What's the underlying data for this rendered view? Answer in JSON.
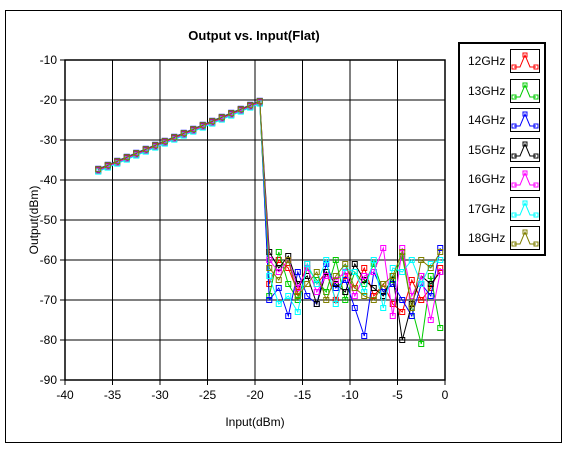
{
  "chart_data": {
    "type": "line",
    "title": "Output vs. Input(Flat)",
    "xlabel": "Input(dBm)",
    "ylabel": "Output(dBm)",
    "xlim": [
      -40,
      0
    ],
    "ylim": [
      -90,
      -10
    ],
    "x_ticks": [
      "-40",
      "-35",
      "-30",
      "-25",
      "-20",
      "-15",
      "-10",
      "-5",
      "0"
    ],
    "y_ticks": [
      "-10",
      "-20",
      "-30",
      "-40",
      "-50",
      "-60",
      "-70",
      "-80",
      "-90"
    ],
    "grid": true,
    "legend_position": "right",
    "x": [
      -36.5,
      -35.5,
      -34.5,
      -33.5,
      -32.5,
      -31.5,
      -30.5,
      -29.5,
      -28.5,
      -27.5,
      -26.5,
      -25.5,
      -24.5,
      -23.5,
      -22.5,
      -21.5,
      -20.5,
      -19.5,
      -18.5,
      -17.5,
      -16.5,
      -15.5,
      -14.5,
      -13.5,
      -12.5,
      -11.5,
      -10.5,
      -9.5,
      -8.5,
      -7.5,
      -6.5,
      -5.5,
      -4.5,
      -3.5,
      -2.5,
      -1.5,
      -0.5
    ],
    "series": [
      {
        "name": "12GHz",
        "color": "#ff0000",
        "values": [
          -37.5,
          -36.5,
          -35.5,
          -34.5,
          -33.5,
          -32.5,
          -31.5,
          -30.5,
          -29.5,
          -28.5,
          -27.5,
          -26.5,
          -25.5,
          -24.5,
          -23.5,
          -22.5,
          -21.5,
          -20.5,
          -66,
          -60,
          -62,
          -68,
          -61,
          -66,
          -63,
          -70,
          -64,
          -67,
          -62,
          -69,
          -66,
          -71,
          -73,
          -65,
          -70,
          -67,
          -62
        ]
      },
      {
        "name": "13GHz",
        "color": "#00cc00",
        "values": [
          -37.8,
          -36.8,
          -35.8,
          -34.8,
          -33.8,
          -32.8,
          -31.8,
          -30.8,
          -29.8,
          -28.8,
          -27.8,
          -26.8,
          -25.8,
          -24.8,
          -23.8,
          -22.8,
          -21.8,
          -20.8,
          -69,
          -58,
          -66,
          -70,
          -62,
          -65,
          -68,
          -60,
          -70,
          -63,
          -66,
          -61,
          -68,
          -65,
          -59,
          -72,
          -81,
          -64,
          -77
        ]
      },
      {
        "name": "14GHz",
        "color": "#0000ff",
        "values": [
          -37.2,
          -36.2,
          -35.2,
          -34.2,
          -33.2,
          -32.2,
          -31.2,
          -30.2,
          -29.2,
          -28.2,
          -27.2,
          -26.2,
          -25.2,
          -24.2,
          -23.2,
          -22.2,
          -21.2,
          -20.2,
          -70,
          -67,
          -74,
          -63,
          -69,
          -71,
          -61,
          -67,
          -65,
          -72,
          -79,
          -63,
          -68,
          -66,
          -70,
          -74,
          -66,
          -69,
          -57
        ]
      },
      {
        "name": "15GHz",
        "color": "#000000",
        "values": [
          -37.4,
          -36.4,
          -35.4,
          -34.4,
          -33.4,
          -32.4,
          -31.4,
          -30.4,
          -29.4,
          -28.4,
          -27.4,
          -26.4,
          -25.4,
          -24.4,
          -23.4,
          -22.4,
          -21.4,
          -20.4,
          -58,
          -62,
          -59,
          -66,
          -64,
          -71,
          -63,
          -66,
          -68,
          -61,
          -65,
          -67,
          -69,
          -64,
          -80,
          -71,
          -64,
          -66,
          -63
        ]
      },
      {
        "name": "16GHz",
        "color": "#ff00ff",
        "values": [
          -37.6,
          -36.6,
          -35.6,
          -34.6,
          -33.6,
          -32.6,
          -31.6,
          -30.6,
          -29.6,
          -28.6,
          -27.6,
          -26.6,
          -25.6,
          -24.6,
          -23.6,
          -22.6,
          -21.6,
          -20.6,
          -60,
          -63,
          -60,
          -67,
          -62,
          -68,
          -64,
          -65,
          -63,
          -69,
          -64,
          -63,
          -57,
          -74,
          -57,
          -69,
          -64,
          -75,
          -63
        ]
      },
      {
        "name": "17GHz",
        "color": "#00ffff",
        "values": [
          -37.9,
          -36.9,
          -35.9,
          -34.9,
          -33.9,
          -32.9,
          -31.9,
          -30.9,
          -29.9,
          -28.9,
          -27.9,
          -26.9,
          -25.9,
          -24.9,
          -23.9,
          -22.9,
          -21.9,
          -20.9,
          -64,
          -71,
          -69,
          -73,
          -61,
          -66,
          -60,
          -71,
          -62,
          -63,
          -68,
          -60,
          -72,
          -62,
          -63,
          -60,
          -66,
          -61,
          -60
        ]
      },
      {
        "name": "18GHz",
        "color": "#808000",
        "values": [
          -37.3,
          -36.3,
          -35.3,
          -34.3,
          -33.3,
          -32.3,
          -31.3,
          -30.3,
          -29.3,
          -28.3,
          -27.3,
          -26.3,
          -25.3,
          -24.3,
          -23.3,
          -22.3,
          -21.3,
          -20.3,
          -62,
          -65,
          -60,
          -69,
          -66,
          -63,
          -70,
          -64,
          -61,
          -67,
          -69,
          -70,
          -66,
          -64,
          -58,
          -72,
          -60,
          -62,
          -58
        ]
      }
    ]
  }
}
